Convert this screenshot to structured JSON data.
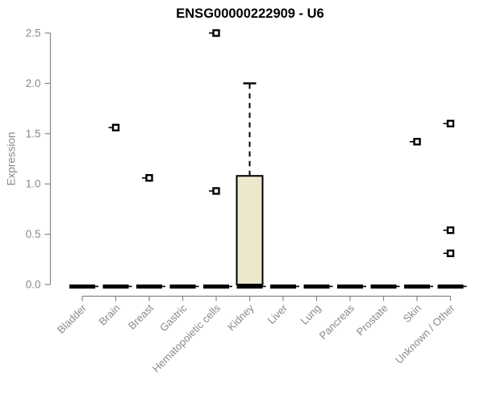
{
  "header": {
    "title": "ENSG00000222909 - U6"
  },
  "chart_data": {
    "type": "boxplot",
    "title": "ENSG00000222909 - U6",
    "xlabel": "",
    "ylabel": "Expression",
    "ylim": [
      0,
      2.5
    ],
    "yticks": [
      0,
      0.5,
      1,
      1.5,
      2,
      2.5
    ],
    "ytick_labels": [
      "0.0",
      "0.5",
      "1.0",
      "1.5",
      "2.0",
      "2.5"
    ],
    "grid": "off",
    "legend": "none",
    "categories": [
      "Bladder",
      "Brain",
      "Breast",
      "Gastric",
      "Hematopoietic cells",
      "Kidney",
      "Liver",
      "Lung",
      "Pancreas",
      "Prostate",
      "Skin",
      "Unknown / Other"
    ],
    "boxes": [
      {
        "category": "Bladder",
        "q1": 0,
        "median": 0,
        "q3": 0,
        "whisker_low": 0,
        "whisker_high": 0,
        "outliers": []
      },
      {
        "category": "Brain",
        "q1": 0,
        "median": 0,
        "q3": 0,
        "whisker_low": 0,
        "whisker_high": 0,
        "outliers": [
          1.56
        ]
      },
      {
        "category": "Breast",
        "q1": 0,
        "median": 0,
        "q3": 0,
        "whisker_low": 0,
        "whisker_high": 0,
        "outliers": [
          1.06
        ]
      },
      {
        "category": "Gastric",
        "q1": 0,
        "median": 0,
        "q3": 0,
        "whisker_low": 0,
        "whisker_high": 0,
        "outliers": []
      },
      {
        "category": "Hematopoietic cells",
        "q1": 0,
        "median": 0,
        "q3": 0,
        "whisker_low": 0,
        "whisker_high": 0,
        "outliers": [
          2.5,
          0.93
        ]
      },
      {
        "category": "Kidney",
        "q1": 0,
        "median": 0,
        "q3": 1.08,
        "whisker_low": 0,
        "whisker_high": 2.0,
        "outliers": []
      },
      {
        "category": "Liver",
        "q1": 0,
        "median": 0,
        "q3": 0,
        "whisker_low": 0,
        "whisker_high": 0,
        "outliers": []
      },
      {
        "category": "Lung",
        "q1": 0,
        "median": 0,
        "q3": 0,
        "whisker_low": 0,
        "whisker_high": 0,
        "outliers": []
      },
      {
        "category": "Pancreas",
        "q1": 0,
        "median": 0,
        "q3": 0,
        "whisker_low": 0,
        "whisker_high": 0,
        "outliers": []
      },
      {
        "category": "Prostate",
        "q1": 0,
        "median": 0,
        "q3": 0,
        "whisker_low": 0,
        "whisker_high": 0,
        "outliers": []
      },
      {
        "category": "Skin",
        "q1": 0,
        "median": 0,
        "q3": 0,
        "whisker_low": 0,
        "whisker_high": 0,
        "outliers": [
          1.42
        ]
      },
      {
        "category": "Unknown / Other",
        "q1": 0,
        "median": 0,
        "q3": 0,
        "whisker_low": 0,
        "whisker_high": 0,
        "outliers": [
          1.6,
          0.54,
          0.31
        ]
      }
    ],
    "colors": {
      "box_fill": "#ECE7CD",
      "box_stroke": "#000000",
      "median": "#000000",
      "whisker": "#000000",
      "outlier": "#000000",
      "axis": "#888888",
      "tick_label": "#8a8a8a",
      "title": "#000000",
      "background": "#ffffff"
    }
  }
}
